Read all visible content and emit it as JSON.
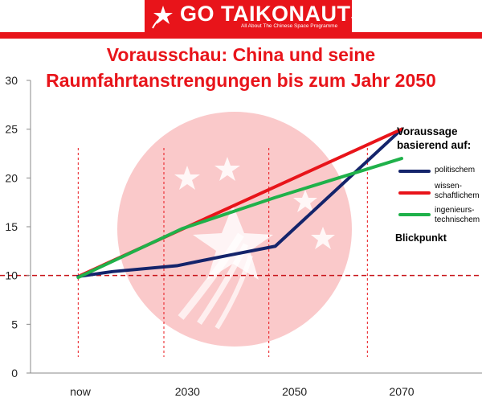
{
  "banner": {
    "logo_text": "GO TAIKONAUTS!",
    "tagline": "All About The Chinese Space Programme",
    "logo_icon": "star-emblem-icon",
    "brand_color": "#e8141a"
  },
  "chart_data": {
    "type": "line",
    "title_lines": [
      "Vorausschau: China und seine",
      "Raumfahrtanstrengungen bis zum Jahr 2050"
    ],
    "categories": [
      "now",
      "2030",
      "2050",
      "2070"
    ],
    "x": [
      0,
      1,
      2,
      3
    ],
    "xlabel": "",
    "ylabel": "",
    "yticks": [
      0,
      5,
      10,
      15,
      20,
      25,
      30
    ],
    "ylim": [
      0,
      30
    ],
    "xlim": [
      0,
      3
    ],
    "grid": false,
    "series": [
      {
        "name": "politischem",
        "color": "#14246b",
        "points": [
          [
            -0.02,
            9.9
          ],
          [
            0.3,
            10.4
          ],
          [
            0.9,
            11.0
          ],
          [
            1.35,
            12.0
          ],
          [
            1.82,
            13.0
          ],
          [
            3.0,
            25.0
          ]
        ]
      },
      {
        "name": "wissen-\nschaftlichem",
        "color": "#e8141a",
        "points": [
          [
            0.0,
            10.0
          ],
          [
            3.0,
            25.0
          ]
        ]
      },
      {
        "name": "ingenieurs-\ntechnischem",
        "color": "#1fb14a",
        "points": [
          [
            -0.02,
            9.8
          ],
          [
            0.95,
            14.8
          ],
          [
            1.82,
            18.0
          ],
          [
            3.0,
            22.0
          ]
        ]
      }
    ],
    "reference_line": {
      "y": 10,
      "color": "#c8141a",
      "style": "dashed"
    },
    "vertical_markers": [
      -0.02,
      0.78,
      1.76,
      2.68
    ],
    "legend": {
      "placement": "right",
      "heading_lines": [
        "Voraussage",
        "basierend auf:"
      ],
      "footer": "Blickpunkt"
    }
  }
}
